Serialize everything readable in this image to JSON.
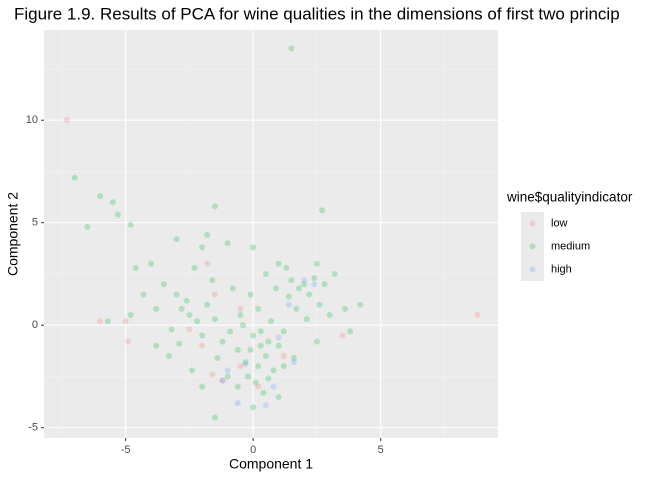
{
  "chart_data": {
    "type": "scatter",
    "title": "Figure 1.9. Results of PCA for wine qualities in the dimensions of first two princip",
    "x_label": "Component 1",
    "y_label": "Component 2",
    "legend_title": "wine$qualityindicator",
    "xlim": [
      -8.2,
      9.6
    ],
    "ylim": [
      -5.5,
      14.4
    ],
    "xticks": [
      -5,
      0,
      5
    ],
    "yticks": [
      -5,
      0,
      5,
      10
    ],
    "xminor": [
      -7.5,
      -2.5,
      2.5,
      7.5
    ],
    "yminor": [
      -2.5,
      2.5,
      7.5,
      12.5
    ],
    "grid": true,
    "legend": "right",
    "series": [
      {
        "name": "low",
        "color": "#F8766D",
        "x": [
          -7.3,
          8.8,
          -6.0,
          -5.0,
          -1.2,
          -1.6,
          -0.5,
          0.2,
          -2.0,
          -4.9,
          -1.5,
          -1.8,
          3.5,
          -2.5,
          1.2,
          -0.5
        ],
        "values": [
          10.0,
          0.5,
          0.2,
          0.2,
          -2.7,
          -2.4,
          -2.0,
          -3.0,
          -1.0,
          -0.8,
          1.5,
          3.0,
          -0.5,
          -0.2,
          -1.5,
          0.8
        ]
      },
      {
        "name": "medium",
        "color": "#00BA38",
        "x": [
          1.5,
          -7.0,
          -6.0,
          -5.5,
          -5.3,
          -4.8,
          -6.5,
          -1.5,
          2.7,
          -3.0,
          -2.0,
          -4.0,
          -3.5,
          -3.0,
          -2.8,
          -2.5,
          -2.2,
          -2.0,
          -3.2,
          -2.6,
          -1.8,
          -1.5,
          -3.8,
          -4.3,
          -4.6,
          -3.3,
          -2.4,
          -2.9,
          -1.2,
          -1.6,
          -2.3,
          -0.8,
          -0.5,
          0.0,
          0.3,
          0.5,
          0.2,
          -0.3,
          0.6,
          0.1,
          0.4,
          -0.2,
          0.8,
          1.0,
          1.2,
          0.7,
          0.2,
          -0.1,
          0.5,
          1.0,
          1.5,
          1.8,
          2.0,
          2.2,
          2.4,
          2.6,
          1.7,
          2.1,
          1.4,
          2.8,
          3.2,
          3.0,
          3.6,
          4.2,
          3.8,
          2.5,
          1.6,
          1.0,
          0.0,
          -0.6,
          -1.0,
          -1.4,
          -0.9,
          -0.6,
          0.9,
          1.3,
          2.5,
          0.0,
          -1.0,
          -1.8,
          -3.8,
          -4.8,
          -5.7,
          -2.0,
          -1.5,
          -0.4,
          0.3,
          0.6,
          1.2,
          -0.1
        ],
        "values": [
          13.5,
          7.2,
          6.3,
          6.0,
          5.4,
          4.9,
          4.8,
          5.8,
          5.6,
          4.2,
          3.8,
          3.0,
          2.0,
          1.5,
          0.8,
          0.5,
          0.2,
          -0.5,
          -0.2,
          1.2,
          1.0,
          0.3,
          0.8,
          1.5,
          2.8,
          -1.5,
          -2.2,
          -0.9,
          -0.8,
          2.2,
          2.8,
          1.8,
          0.5,
          -0.5,
          -1.0,
          -1.5,
          -2.0,
          -1.8,
          -0.8,
          -2.8,
          -3.3,
          -2.5,
          -2.2,
          -1.0,
          -0.3,
          0.2,
          0.8,
          1.5,
          2.5,
          3.0,
          2.2,
          1.8,
          2.0,
          1.5,
          2.3,
          1.0,
          0.8,
          0.3,
          1.4,
          2.0,
          2.5,
          0.5,
          0.8,
          1.0,
          -0.3,
          -0.8,
          -1.6,
          -3.5,
          -4.0,
          -3.0,
          -2.5,
          -1.6,
          -0.3,
          -1.2,
          1.8,
          2.8,
          3.0,
          3.8,
          4.0,
          4.4,
          -1.0,
          0.5,
          0.2,
          -3.0,
          -4.5,
          0.0,
          -0.3,
          -2.6,
          -2.0,
          -1.2
        ]
      },
      {
        "name": "high",
        "color": "#619CFF",
        "x": [
          -1.2,
          -0.6,
          0.5,
          1.6,
          2.0,
          2.4,
          -0.3,
          1.0,
          0.8,
          -1.0,
          1.4
        ],
        "values": [
          -2.7,
          -3.8,
          -3.9,
          -1.8,
          2.2,
          2.0,
          -1.9,
          -0.6,
          -3.0,
          -2.2,
          1.0
        ]
      }
    ]
  }
}
